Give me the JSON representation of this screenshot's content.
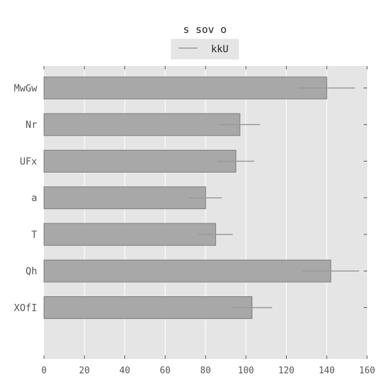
{
  "chart_data": {
    "type": "bar",
    "orientation": "horizontal",
    "title": "s sov o",
    "categories": [
      "MwGw",
      "Nr",
      "UFx",
      "a",
      "T",
      "Qh",
      "XOfI"
    ],
    "series": [
      {
        "name": "kkU",
        "values": [
          140,
          97,
          95,
          80,
          85,
          142,
          103
        ],
        "errors": [
          14,
          10,
          9,
          8,
          8.5,
          14,
          10
        ]
      }
    ],
    "xlim": [
      0,
      160
    ],
    "x_ticks": [
      0,
      20,
      40,
      60,
      80,
      100,
      120,
      140,
      160
    ],
    "grid": true,
    "legend_position": "top-center",
    "colors": {
      "plot_background": "#e5e5e5",
      "bar_fill": "#a8a8a8",
      "bar_edge": "#7a7a7a",
      "error_bar": "#999999",
      "grid": "#ffffff",
      "text": "#555555",
      "legend_background": "#e5e5e5"
    }
  }
}
